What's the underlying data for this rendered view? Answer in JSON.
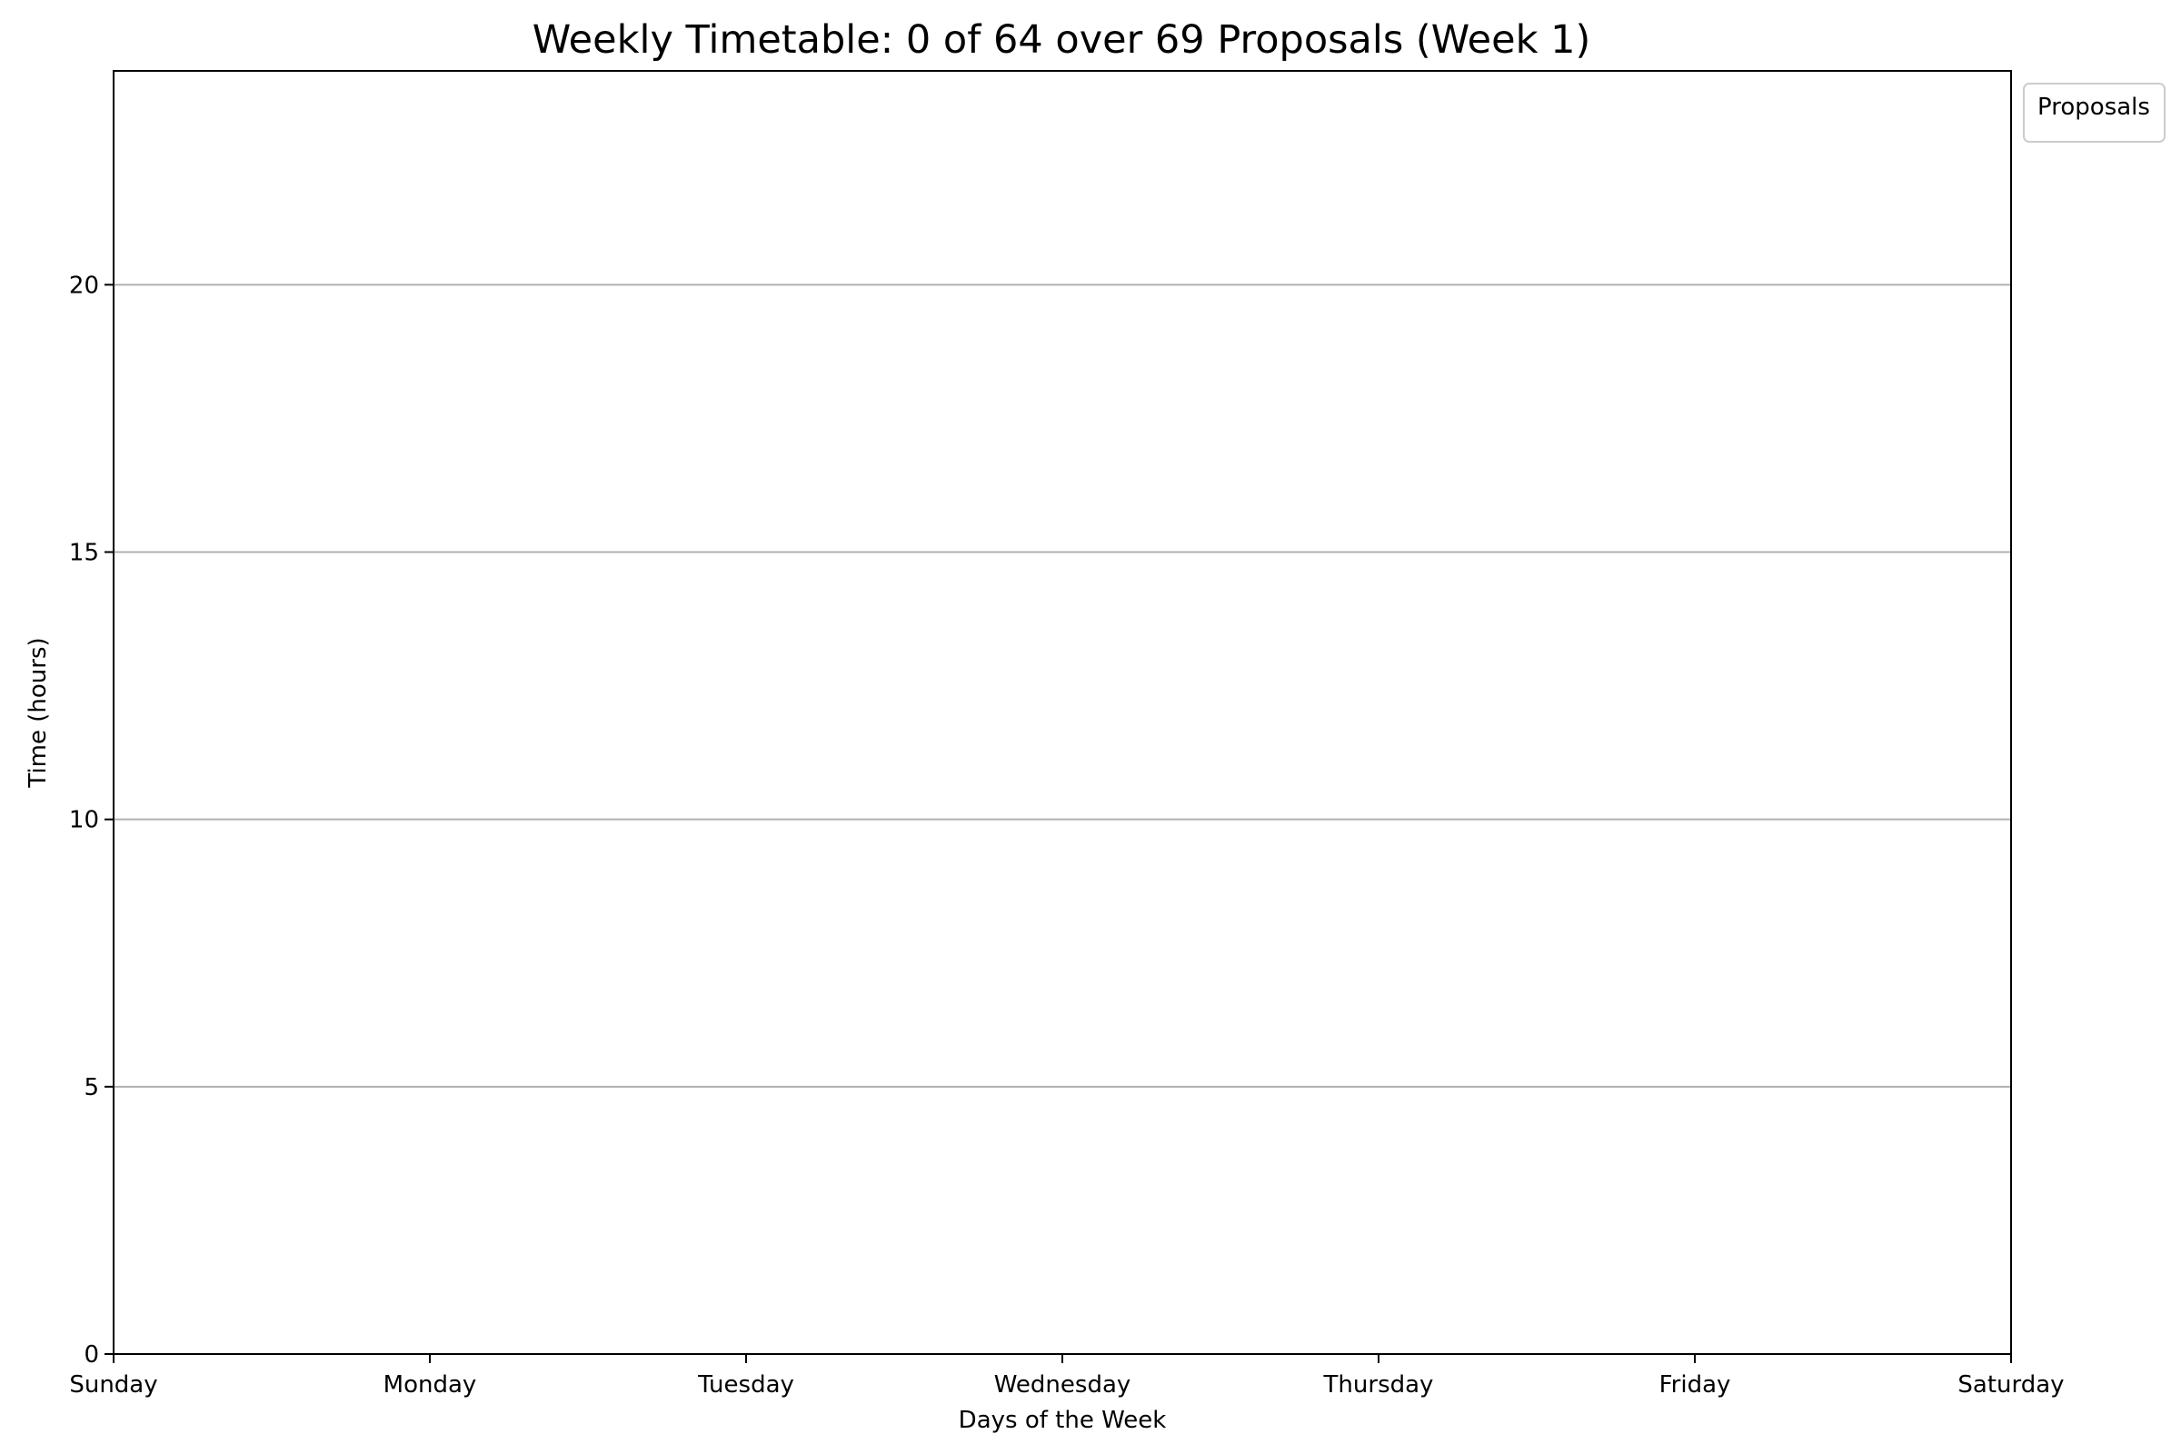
{
  "chart_data": {
    "type": "bar",
    "title": "Weekly Timetable: 0 of 64 over 69 Proposals (Week 1)",
    "xlabel": "Days of the Week",
    "ylabel": "Time (hours)",
    "categories": [
      "Sunday",
      "Monday",
      "Tuesday",
      "Wednesday",
      "Thursday",
      "Friday",
      "Saturday"
    ],
    "x_ticks": [
      0,
      1,
      2,
      3,
      4,
      5,
      6
    ],
    "xlim": [
      0,
      6
    ],
    "ylim": [
      0,
      24
    ],
    "y_ticks": [
      0,
      5,
      10,
      15,
      20
    ],
    "grid": "horizontal",
    "series": [],
    "legend": {
      "title": "Proposals",
      "placement": "outside-top-right",
      "entries": []
    }
  }
}
